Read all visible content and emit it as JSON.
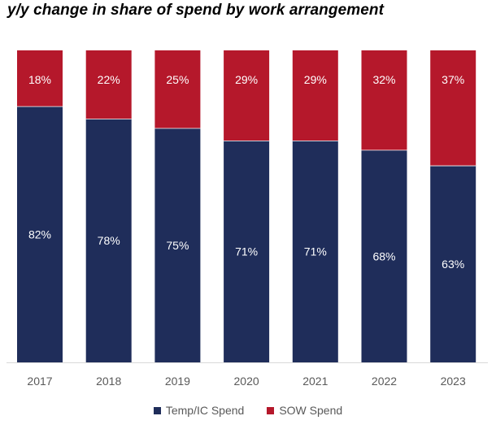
{
  "chart_data": {
    "type": "bar",
    "stacked": true,
    "title": "y/y change in share of spend by work arrangement",
    "categories": [
      "2017",
      "2018",
      "2019",
      "2020",
      "2021",
      "2022",
      "2023"
    ],
    "series": [
      {
        "name": "Temp/IC Spend",
        "values": [
          82,
          78,
          75,
          71,
          71,
          68,
          63
        ],
        "labels": [
          "82%",
          "78%",
          "75%",
          "71%",
          "71%",
          "68%",
          "63%"
        ],
        "color": "#1f2d5a"
      },
      {
        "name": "SOW Spend",
        "values": [
          18,
          22,
          25,
          29,
          29,
          32,
          37
        ],
        "labels": [
          "18%",
          "22%",
          "25%",
          "29%",
          "29%",
          "32%",
          "37%"
        ],
        "color": "#b5182b"
      }
    ],
    "ylim": [
      0,
      100
    ],
    "grid": false,
    "legend_position": "bottom"
  }
}
